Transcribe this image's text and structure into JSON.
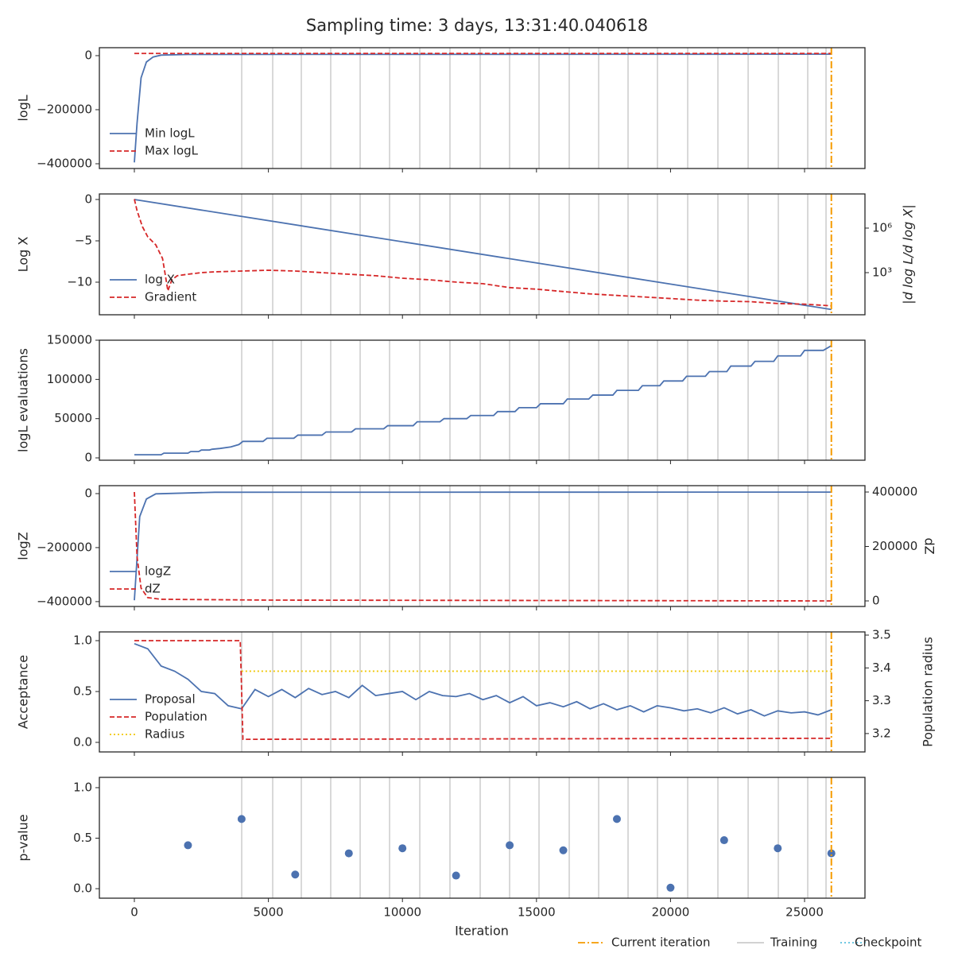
{
  "figure": {
    "title": "Sampling time: 3 days, 13:31:40.040618",
    "xlabel": "Iteration",
    "xlim": [
      -1305,
      27253
    ],
    "xticks": [
      0,
      5000,
      10000,
      15000,
      20000,
      25000
    ],
    "training_iterations": [
      4004,
      5160,
      6228,
      7325,
      8422,
      9520,
      10647,
      11773,
      12900,
      13998,
      15095,
      16222,
      17319,
      18416,
      19513,
      20641,
      21767,
      22895,
      24021,
      25119,
      25801
    ],
    "current_iteration": 26000,
    "legend": [
      {
        "name": "Current iteration",
        "color": "#f59b00",
        "dash": "dashdot"
      },
      {
        "name": "Training",
        "color": "#cccccc",
        "dash": "solid"
      },
      {
        "name": "Checkpoint",
        "color": "#5bc0de",
        "dash": "dotted"
      }
    ]
  },
  "chart_data": [
    {
      "type": "line",
      "ylabel": "logL",
      "ylim": [
        -417600,
        29400
      ],
      "yticks": [
        {
          "value": 0,
          "label": "0"
        },
        {
          "value": -200000,
          "label": "−200000"
        },
        {
          "value": -400000,
          "label": "−400000"
        }
      ],
      "legend": "lower left",
      "series": [
        {
          "name": "Min logL",
          "color": "#4c72b0",
          "dash": "solid",
          "x": [
            0,
            100,
            250,
            450,
            700,
            1000,
            2000,
            26000
          ],
          "values": [
            -395000,
            -250000,
            -82000,
            -23500,
            -5000,
            2000,
            4500,
            5500
          ]
        },
        {
          "name": "Max logL",
          "color": "#d62728",
          "dash": "dashed",
          "x": [
            0,
            26000
          ],
          "values": [
            8000,
            8000
          ]
        }
      ]
    },
    {
      "type": "line",
      "ylabel": "Log X",
      "ylim": [
        -13.94,
        0.67
      ],
      "yticks": [
        {
          "value": 0,
          "label": "0"
        },
        {
          "value": -5,
          "label": "−5"
        },
        {
          "value": -10,
          "label": "−10"
        }
      ],
      "y2label": "|d log L/d log X|",
      "y2log": true,
      "y2lim": [
        1.45,
        200000000
      ],
      "y2ticks": [
        {
          "value": 1000,
          "label": "10³"
        },
        {
          "value": 1000000,
          "label": "10⁶"
        }
      ],
      "legend": "lower left",
      "series": [
        {
          "name": "log X",
          "color": "#4c72b0",
          "dash": "solid",
          "x": [
            0,
            26000
          ],
          "values": [
            0,
            -13.3
          ]
        },
        {
          "name": "Gradient",
          "color": "#d62728",
          "dash": "dashed",
          "axis": "y2",
          "x": [
            0,
            100,
            300,
            500,
            800,
            1050,
            1150,
            1250,
            1400,
            1600,
            2000,
            2500,
            3000,
            4000,
            5000,
            6000,
            7000,
            8000,
            9000,
            10000,
            11000,
            12000,
            13000,
            14000,
            15000,
            16000,
            17000,
            18000,
            19000,
            20000,
            21000,
            22000,
            23000,
            24000,
            25000,
            26000
          ],
          "values": [
            89000000,
            15000000,
            1260000,
            257000,
            74000,
            9100,
            780,
            59,
            330,
            620,
            780,
            1000,
            1130,
            1280,
            1450,
            1280,
            1000,
            780,
            620,
            420,
            330,
            230,
            180,
            98,
            77,
            53,
            37,
            29,
            23,
            18,
            14,
            12,
            11,
            8.3,
            7.5,
            5.8
          ]
        }
      ]
    },
    {
      "type": "line",
      "ylabel": "logL evaluations",
      "ylim": [
        -3000,
        150000
      ],
      "yticks": [
        0,
        50000,
        100000,
        150000
      ],
      "series": [
        {
          "name": "logL evaluations",
          "color": "#4c72b0",
          "dash": "solid",
          "x": [
            0,
            1000,
            1100,
            2000,
            2100,
            2400,
            2500,
            2800,
            2900,
            3200,
            3600,
            3900,
            4050,
            4800,
            4950,
            5950,
            6100,
            7000,
            7150,
            8100,
            8250,
            9300,
            9450,
            10400,
            10550,
            11400,
            11550,
            12400,
            12550,
            13400,
            13550,
            14200,
            14350,
            15000,
            15150,
            16000,
            16150,
            16950,
            17100,
            17850,
            18000,
            18800,
            18950,
            19600,
            19750,
            20450,
            20600,
            21300,
            21450,
            22100,
            22250,
            23000,
            23150,
            23850,
            24000,
            24850,
            25000,
            25700,
            26000
          ],
          "values": [
            4000,
            4000,
            6000,
            6000,
            8000,
            8000,
            10000,
            10000,
            11000,
            12000,
            14000,
            17000,
            21000,
            21000,
            25000,
            25000,
            29000,
            29000,
            33000,
            33000,
            37000,
            37000,
            41000,
            41000,
            46000,
            46000,
            50000,
            50000,
            54000,
            54000,
            59000,
            59000,
            64000,
            64000,
            69000,
            69000,
            75000,
            75000,
            80000,
            80000,
            86000,
            86000,
            92000,
            92000,
            98000,
            98000,
            104000,
            104000,
            110000,
            110000,
            117000,
            117000,
            123000,
            123000,
            130000,
            130000,
            137000,
            137000,
            143000
          ]
        }
      ]
    },
    {
      "type": "line",
      "ylabel": "logZ",
      "ylim": [
        -418000,
        29400
      ],
      "yticks": [
        {
          "value": 0,
          "label": "0"
        },
        {
          "value": -200000,
          "label": "−200000"
        },
        {
          "value": -400000,
          "label": "−400000"
        }
      ],
      "y2label": "dZ",
      "y2lim": [
        -20400,
        423400
      ],
      "y2ticks": [
        0,
        200000,
        400000
      ],
      "legend": "lower left",
      "series": [
        {
          "name": "logZ",
          "color": "#4c72b0",
          "dash": "solid",
          "x": [
            0,
            200,
            450,
            800,
            3000,
            26000
          ],
          "values": [
            -395000,
            -85000,
            -20000,
            -1000,
            5000,
            5500
          ]
        },
        {
          "name": "dZ",
          "color": "#d62728",
          "dash": "dashed",
          "axis": "y2",
          "x": [
            0,
            100,
            250,
            500,
            1000,
            5000,
            26000
          ],
          "values": [
            400000,
            163000,
            47000,
            12000,
            6000,
            3000,
            0
          ]
        }
      ]
    },
    {
      "type": "line",
      "ylabel": "Acceptance",
      "ylim": [
        -0.094,
        1.086
      ],
      "yticks": [
        {
          "value": 0,
          "label": "0.0"
        },
        {
          "value": 0.5,
          "label": "0.5"
        },
        {
          "value": 1,
          "label": "1.0"
        }
      ],
      "y2label": "Population radius",
      "y2lim": [
        3.144,
        3.5097
      ],
      "y2ticks": [
        3.2,
        3.3,
        3.4,
        3.5
      ],
      "legend": "lower left",
      "series": [
        {
          "name": "Proposal",
          "color": "#4c72b0",
          "dash": "solid",
          "x": [
            0,
            500,
            1000,
            1500,
            2000,
            2500,
            3000,
            3500,
            4000,
            4500,
            5000,
            5500,
            6000,
            6500,
            7000,
            7500,
            8000,
            8500,
            9000,
            9500,
            10000,
            10500,
            11000,
            11500,
            12000,
            12500,
            13000,
            13500,
            14000,
            14500,
            15000,
            15500,
            16000,
            16500,
            17000,
            17500,
            18000,
            18500,
            19000,
            19500,
            20000,
            20500,
            21000,
            21500,
            22000,
            22500,
            23000,
            23500,
            24000,
            24500,
            25000,
            25500,
            26000
          ],
          "values": [
            0.97,
            0.92,
            0.75,
            0.7,
            0.62,
            0.5,
            0.48,
            0.36,
            0.33,
            0.52,
            0.45,
            0.52,
            0.44,
            0.53,
            0.47,
            0.5,
            0.44,
            0.56,
            0.46,
            0.48,
            0.5,
            0.42,
            0.5,
            0.46,
            0.45,
            0.48,
            0.42,
            0.46,
            0.39,
            0.45,
            0.36,
            0.39,
            0.35,
            0.4,
            0.33,
            0.38,
            0.32,
            0.36,
            0.3,
            0.36,
            0.34,
            0.31,
            0.33,
            0.29,
            0.34,
            0.28,
            0.32,
            0.26,
            0.31,
            0.29,
            0.3,
            0.27,
            0.32
          ]
        },
        {
          "name": "Population",
          "color": "#d62728",
          "dash": "dashed",
          "x": [
            0,
            3950,
            4050,
            26000
          ],
          "values": [
            1,
            1,
            0.03,
            0.04
          ]
        },
        {
          "name": "Radius",
          "color": "#f0c808",
          "dash": "dotted",
          "axis": "y2",
          "x": [
            4000,
            26000
          ],
          "values": [
            3.39,
            3.39
          ]
        }
      ]
    },
    {
      "type": "scatter",
      "ylabel": "p-value",
      "ylim": [
        -0.094,
        1.102
      ],
      "yticks": [
        {
          "value": 0,
          "label": "0.0"
        },
        {
          "value": 0.5,
          "label": "0.5"
        },
        {
          "value": 1,
          "label": "1.0"
        }
      ],
      "series": [
        {
          "name": "p-value",
          "color": "#4c72b0",
          "x": [
            2000,
            4000,
            6000,
            8000,
            10000,
            12000,
            14000,
            16000,
            18000,
            20000,
            22000,
            24000,
            26000
          ],
          "values": [
            0.43,
            0.69,
            0.14,
            0.35,
            0.4,
            0.13,
            0.43,
            0.38,
            0.69,
            0.01,
            0.48,
            0.4,
            0.35
          ]
        }
      ]
    }
  ]
}
